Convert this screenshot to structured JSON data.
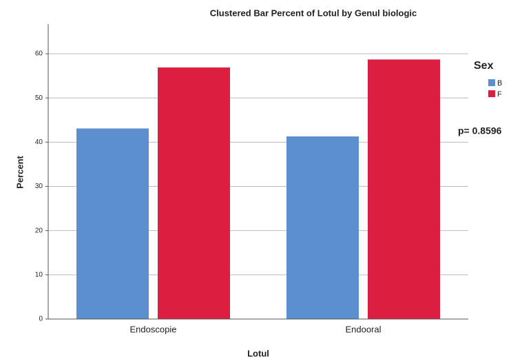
{
  "chart_data": {
    "type": "bar",
    "title": "Clustered Bar Percent of Lotul by Genul biologic",
    "x_label": "Lotul",
    "y_label": "Percent",
    "categories": [
      "Endoscopie",
      "Endooral"
    ],
    "series": [
      {
        "name": "B",
        "color": "#5b8fcf",
        "values": [
          43.1,
          41.3
        ]
      },
      {
        "name": "F",
        "color": "#dc1e40",
        "values": [
          56.9,
          58.7
        ]
      }
    ],
    "legend_title": "Sex",
    "legend": "right",
    "annotation": "p= 0.8596",
    "ylim": [
      0,
      66.7
    ],
    "yticks": [
      0,
      10,
      20,
      30,
      40,
      50,
      60
    ],
    "grid": true
  }
}
